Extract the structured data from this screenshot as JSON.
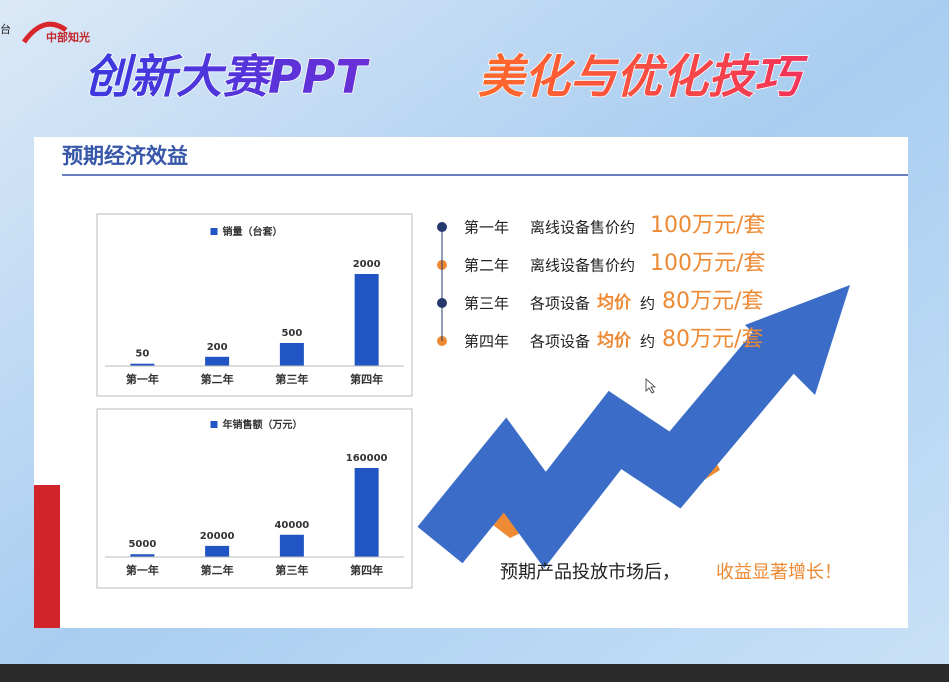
{
  "header": {
    "logo": "中部知光",
    "side_text": "台",
    "title_part1": "创新大赛PPT",
    "title_part2": "美化与优化技巧"
  },
  "slide": {
    "title": "预期经济效益",
    "items": [
      {
        "year": "第一年",
        "desc": "离线设备售价约",
        "price": "100万元/套"
      },
      {
        "year": "第二年",
        "desc": "离线设备售价约",
        "price": "100万元/套"
      },
      {
        "year": "第三年",
        "desc": "各项设备",
        "emphasis": "均价",
        "desc2": "约",
        "price": "80万元/套"
      },
      {
        "year": "第四年",
        "desc": "各项设备",
        "emphasis": "均价",
        "desc2": "约",
        "price": "80万元/套"
      }
    ],
    "caption": "预期产品投放市场后，",
    "caption_emphasis": "收益显著增长！"
  },
  "chart_data": [
    {
      "type": "bar",
      "categories": [
        "第一年",
        "第二年",
        "第三年",
        "第四年"
      ],
      "series": [
        {
          "name": "销量（台套）",
          "color": "#2155c4",
          "values": [
            50,
            200,
            500,
            2000
          ]
        }
      ]
    },
    {
      "type": "bar",
      "categories": [
        "第一年",
        "第二年",
        "第三年",
        "第四年"
      ],
      "series": [
        {
          "name": "年销售额（万元）",
          "color": "#2155c4",
          "values": [
            5000,
            20000,
            40000,
            160000
          ]
        }
      ]
    }
  ]
}
